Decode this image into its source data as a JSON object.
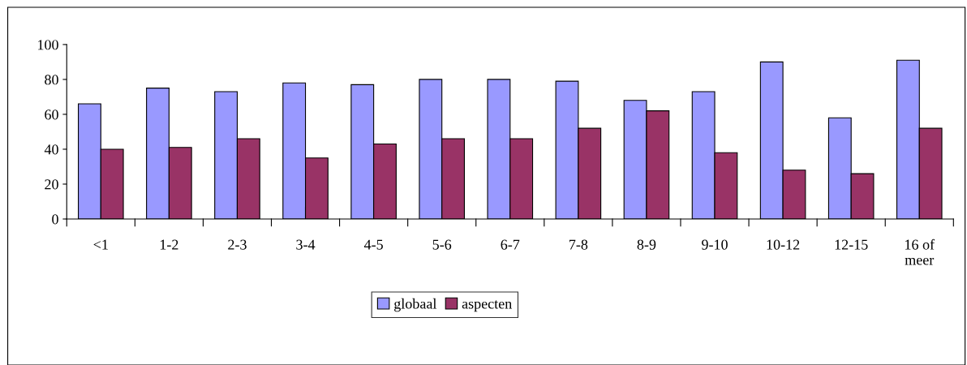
{
  "chart_data": {
    "type": "bar",
    "categories": [
      "<1",
      "1-2",
      "2-3",
      "3-4",
      "4-5",
      "5-6",
      "6-7",
      "7-8",
      "8-9",
      "9-10",
      "10-12",
      "12-15",
      "16 of\nmeer"
    ],
    "series": [
      {
        "name": "globaal",
        "color": "#9999ff",
        "values": [
          66,
          75,
          73,
          78,
          77,
          80,
          80,
          79,
          68,
          73,
          90,
          58,
          91
        ]
      },
      {
        "name": "aspecten",
        "color": "#993366",
        "values": [
          40,
          41,
          46,
          35,
          43,
          46,
          46,
          52,
          62,
          38,
          28,
          26,
          52
        ]
      }
    ],
    "ylim": [
      0,
      100
    ],
    "yticks": [
      0,
      20,
      40,
      60,
      80,
      100
    ],
    "grid": false,
    "legend": "bottom"
  }
}
